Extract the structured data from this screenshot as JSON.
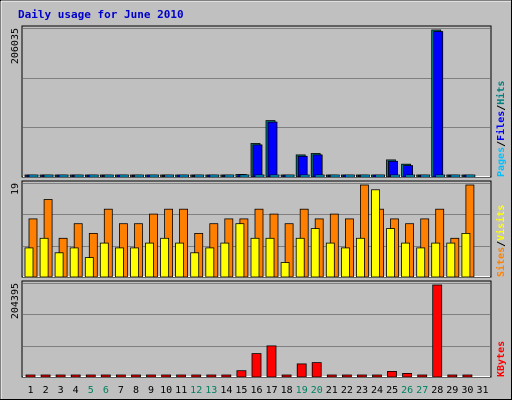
{
  "colors": {
    "background": "#c0c0c0",
    "border": "#000000",
    "title": "#0000cc",
    "hits": "#00807f",
    "files": "#0000ff",
    "pages": "#00c0ff",
    "visits": "#ffff00",
    "sites": "#ff8000",
    "kbytes": "#ff0000",
    "weekend_label": "#00805f"
  },
  "chart_data": {
    "title": "Daily usage for June 2010",
    "type": "bar",
    "categories": [
      "1",
      "2",
      "3",
      "4",
      "5",
      "6",
      "7",
      "8",
      "9",
      "10",
      "11",
      "12",
      "13",
      "14",
      "15",
      "16",
      "17",
      "18",
      "19",
      "20",
      "21",
      "22",
      "23",
      "24",
      "25",
      "26",
      "27",
      "28",
      "29",
      "30",
      "31"
    ],
    "weekend_days": [
      "5",
      "6",
      "12",
      "13",
      "19",
      "20",
      "26",
      "27"
    ],
    "legend_hits_files_pages": [
      "Pages",
      "Files",
      "Hits"
    ],
    "legend_visits_sites": [
      "Sites",
      "Visits"
    ],
    "legend_kbytes": [
      "KBytes"
    ],
    "panels": [
      {
        "name": "hits-files-pages",
        "ymax_label": "206035",
        "ymax": 206035,
        "series": [
          {
            "name": "Hits",
            "values": [
              1200,
              1200,
              1200,
              1200,
              1200,
              1200,
              1200,
              1200,
              1200,
              1200,
              1200,
              1200,
              1200,
              1200,
              3500,
              47000,
              79000,
              1200,
              31000,
              33000,
              1200,
              1200,
              1200,
              1200,
              24000,
              18000,
              1200,
              206035,
              1200,
              1200,
              0
            ]
          },
          {
            "name": "Files",
            "values": [
              1100,
              1100,
              1100,
              1100,
              1100,
              1100,
              1100,
              1100,
              1100,
              1100,
              1100,
              1100,
              1100,
              1100,
              3300,
              45000,
              77000,
              1100,
              29000,
              31000,
              1100,
              1100,
              1100,
              1100,
              22000,
              16000,
              1100,
              204000,
              1100,
              1100,
              0
            ]
          },
          {
            "name": "Pages",
            "values": [
              300,
              300,
              300,
              300,
              300,
              300,
              300,
              300,
              300,
              300,
              300,
              300,
              300,
              300,
              500,
              700,
              800,
              300,
              600,
              600,
              300,
              300,
              300,
              300,
              500,
              500,
              300,
              800,
              300,
              300,
              0
            ]
          }
        ]
      },
      {
        "name": "visits-sites",
        "ymax_label": "19",
        "ymax": 19,
        "series": [
          {
            "name": "Sites",
            "values": [
              12,
              16,
              8,
              11,
              9,
              14,
              11,
              11,
              13,
              14,
              14,
              9,
              11,
              12,
              12,
              14,
              13,
              11,
              14,
              12,
              13,
              12,
              19,
              14,
              12,
              11,
              12,
              14,
              8,
              19,
              0
            ]
          },
          {
            "name": "Visits",
            "values": [
              6,
              8,
              5,
              6,
              4,
              7,
              6,
              6,
              7,
              8,
              7,
              5,
              6,
              7,
              11,
              8,
              8,
              3,
              8,
              10,
              7,
              6,
              8,
              18,
              10,
              7,
              6,
              7,
              7,
              9,
              0
            ]
          }
        ]
      },
      {
        "name": "kbytes",
        "ymax_label": "204395",
        "ymax": 204395,
        "series": [
          {
            "name": "KBytes",
            "values": [
              1500,
              2000,
              2000,
              1500,
              1500,
              1500,
              2500,
              1500,
              1500,
              1500,
              1500,
              1500,
              1500,
              1500,
              14000,
              52000,
              69000,
              2000,
              29000,
              32000,
              1500,
              1500,
              1500,
              3000,
              12500,
              8000,
              1500,
              204395,
              2000,
              2000,
              0
            ]
          }
        ]
      }
    ]
  }
}
